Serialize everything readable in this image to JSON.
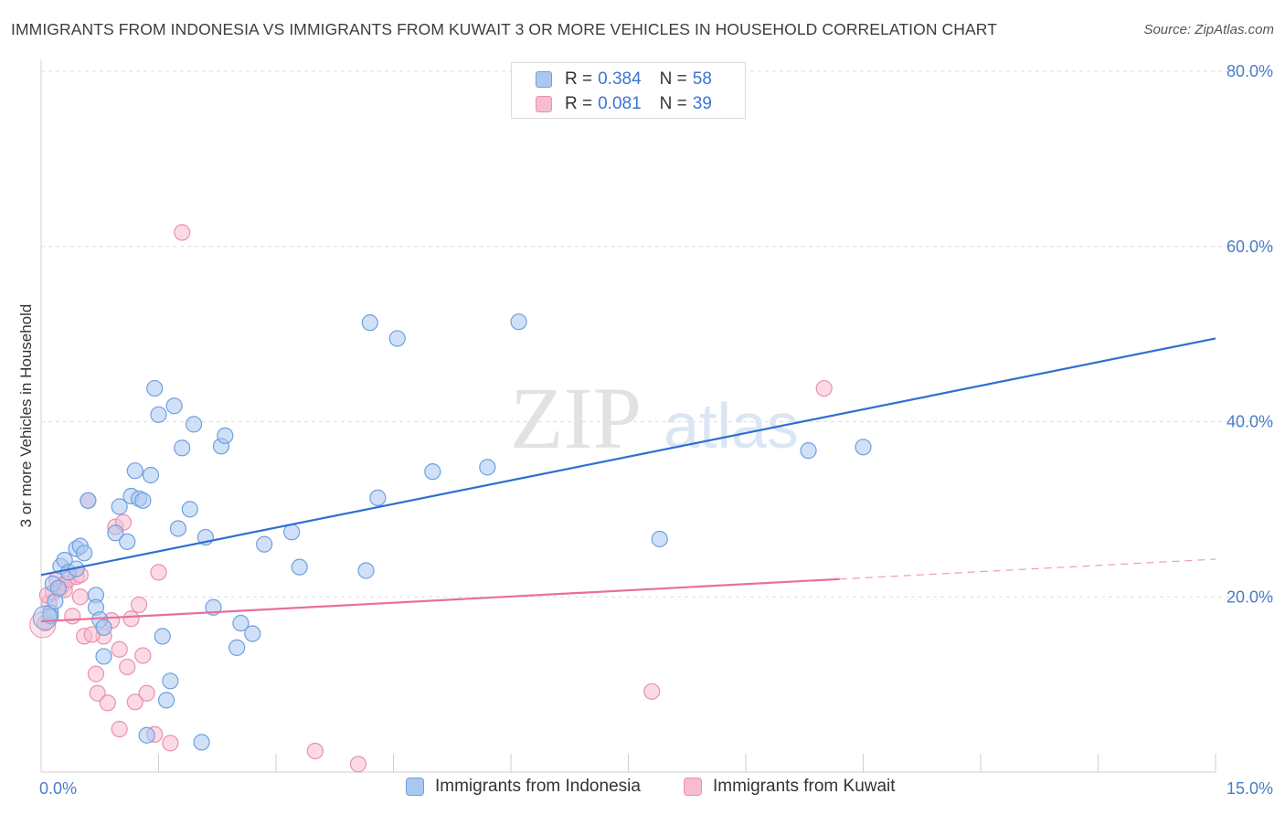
{
  "title": "IMMIGRANTS FROM INDONESIA VS IMMIGRANTS FROM KUWAIT 3 OR MORE VEHICLES IN HOUSEHOLD CORRELATION CHART",
  "source": "Source: ZipAtlas.com",
  "watermark": {
    "zip": "ZIP",
    "atlas": "atlas"
  },
  "legend": {
    "rows": [
      {
        "r_label": "R = ",
        "r_value": "0.384",
        "n_label": "N = ",
        "n_value": "58"
      },
      {
        "r_label": "R = ",
        "r_value": "0.081",
        "n_label": "N = ",
        "n_value": "39"
      }
    ]
  },
  "colors": {
    "indonesia_fill": "#aac8f0",
    "indonesia_stroke": "#6f9fe0",
    "indonesia_line": "#2f6fcf",
    "kuwait_fill": "#f7bcd0",
    "kuwait_stroke": "#ec8fb0",
    "kuwait_line": "#e86f9a",
    "axis_text": "#4a7cc9",
    "grid": "#dedede"
  },
  "chart_data": {
    "type": "scatter",
    "title": "IMMIGRANTS FROM INDONESIA VS IMMIGRANTS FROM KUWAIT 3 OR MORE VEHICLES IN HOUSEHOLD CORRELATION CHART",
    "xlabel": "",
    "ylabel": "3 or more Vehicles in Household",
    "xlim": [
      0,
      15
    ],
    "ylim": [
      0,
      80
    ],
    "x_tick_labels": [
      "0.0%",
      "15.0%"
    ],
    "y_ticks": [
      20,
      40,
      60,
      80
    ],
    "y_tick_labels": [
      "20.0%",
      "40.0%",
      "60.0%",
      "80.0%"
    ],
    "series": [
      {
        "name": "Immigrants from Indonesia",
        "r": 0.384,
        "n": 58,
        "trend": {
          "x": [
            0,
            15
          ],
          "y": [
            22.5,
            49.5
          ],
          "dashed_from": null
        },
        "points": [
          [
            0.12,
            18.2
          ],
          [
            0.12,
            17.8
          ],
          [
            0.15,
            21.5
          ],
          [
            0.18,
            19.5
          ],
          [
            0.25,
            23.5
          ],
          [
            0.3,
            24.2
          ],
          [
            0.35,
            22.8
          ],
          [
            0.45,
            25.5
          ],
          [
            0.5,
            25.8
          ],
          [
            0.55,
            25.0
          ],
          [
            0.45,
            23.2
          ],
          [
            0.6,
            31.0
          ],
          [
            0.7,
            20.2
          ],
          [
            0.7,
            18.8
          ],
          [
            0.75,
            17.4
          ],
          [
            0.8,
            13.2
          ],
          [
            0.8,
            16.5
          ],
          [
            0.95,
            27.3
          ],
          [
            1.0,
            30.3
          ],
          [
            1.1,
            26.3
          ],
          [
            1.15,
            31.5
          ],
          [
            1.2,
            34.4
          ],
          [
            1.25,
            31.2
          ],
          [
            1.3,
            31.0
          ],
          [
            1.35,
            4.2
          ],
          [
            1.4,
            33.9
          ],
          [
            1.45,
            43.8
          ],
          [
            1.5,
            40.8
          ],
          [
            1.55,
            15.5
          ],
          [
            1.6,
            8.2
          ],
          [
            1.65,
            10.4
          ],
          [
            1.7,
            41.8
          ],
          [
            1.75,
            27.8
          ],
          [
            1.8,
            37.0
          ],
          [
            1.9,
            30.0
          ],
          [
            1.95,
            39.7
          ],
          [
            2.05,
            3.4
          ],
          [
            2.1,
            26.8
          ],
          [
            2.2,
            18.8
          ],
          [
            2.3,
            37.2
          ],
          [
            2.35,
            38.4
          ],
          [
            2.5,
            14.2
          ],
          [
            2.55,
            17.0
          ],
          [
            2.7,
            15.8
          ],
          [
            2.85,
            26.0
          ],
          [
            3.2,
            27.4
          ],
          [
            3.3,
            23.4
          ],
          [
            4.15,
            23.0
          ],
          [
            4.2,
            51.3
          ],
          [
            4.3,
            31.3
          ],
          [
            4.55,
            49.5
          ],
          [
            5.0,
            34.3
          ],
          [
            5.7,
            34.8
          ],
          [
            6.1,
            51.4
          ],
          [
            7.9,
            26.6
          ],
          [
            9.8,
            36.7
          ],
          [
            10.5,
            37.1
          ],
          [
            0.22,
            21.0
          ]
        ]
      },
      {
        "name": "Immigrants from Kuwait",
        "r": 0.081,
        "n": 39,
        "trend": {
          "x": [
            0,
            15
          ],
          "y": [
            17.2,
            24.3
          ],
          "dashed_from": 10.2
        },
        "points": [
          [
            0.05,
            17.0
          ],
          [
            0.1,
            19.3
          ],
          [
            0.15,
            20.5
          ],
          [
            0.2,
            22.0
          ],
          [
            0.25,
            21.0
          ],
          [
            0.3,
            21.5
          ],
          [
            0.3,
            20.8
          ],
          [
            0.35,
            22.0
          ],
          [
            0.4,
            17.8
          ],
          [
            0.45,
            22.3
          ],
          [
            0.5,
            20.0
          ],
          [
            0.5,
            22.5
          ],
          [
            0.55,
            15.5
          ],
          [
            0.6,
            31.0
          ],
          [
            0.7,
            11.2
          ],
          [
            0.72,
            9.0
          ],
          [
            0.8,
            15.5
          ],
          [
            0.85,
            7.9
          ],
          [
            0.9,
            17.3
          ],
          [
            0.95,
            28.0
          ],
          [
            1.0,
            14.0
          ],
          [
            1.0,
            4.9
          ],
          [
            1.05,
            28.5
          ],
          [
            1.1,
            12.0
          ],
          [
            1.15,
            17.5
          ],
          [
            1.2,
            8.0
          ],
          [
            1.25,
            19.1
          ],
          [
            1.3,
            13.3
          ],
          [
            1.35,
            9.0
          ],
          [
            1.45,
            4.3
          ],
          [
            1.5,
            22.8
          ],
          [
            1.65,
            3.3
          ],
          [
            1.8,
            61.6
          ],
          [
            3.5,
            2.4
          ],
          [
            4.05,
            0.9
          ],
          [
            7.8,
            9.2
          ],
          [
            10.0,
            43.8
          ],
          [
            0.08,
            20.2
          ],
          [
            0.65,
            15.7
          ]
        ]
      }
    ]
  }
}
